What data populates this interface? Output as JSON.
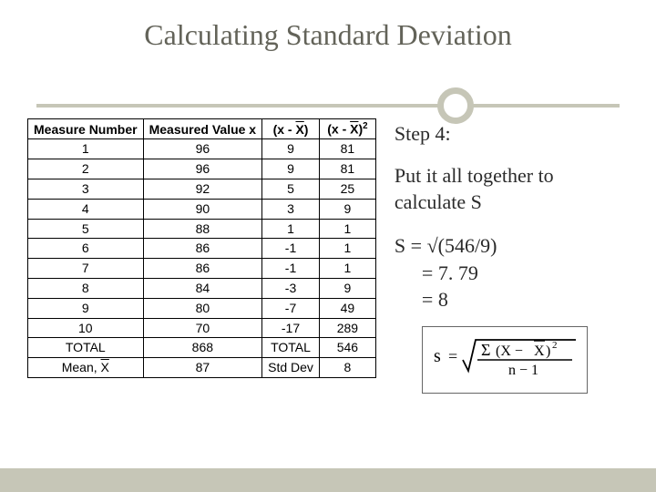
{
  "title": "Calculating Standard Deviation",
  "colors": {
    "accent": "#c6c6b7",
    "title_text": "#636359",
    "body_text": "#2a2a2a",
    "table_border": "#000000",
    "background": "#ffffff"
  },
  "table": {
    "headers": {
      "c1": "Measure Number",
      "c2": "Measured Value x",
      "c3_prefix": "(x - ",
      "c3_xbar": "X",
      "c3_suffix": ")",
      "c4_prefix": "(x - ",
      "c4_xbar": "X",
      "c4_suffix": ")",
      "c4_exp": "2"
    },
    "rows": [
      {
        "n": "1",
        "x": "96",
        "d": "9",
        "d2": "81"
      },
      {
        "n": "2",
        "x": "96",
        "d": "9",
        "d2": "81"
      },
      {
        "n": "3",
        "x": "92",
        "d": "5",
        "d2": "25"
      },
      {
        "n": "4",
        "x": "90",
        "d": "3",
        "d2": "9"
      },
      {
        "n": "5",
        "x": "88",
        "d": "1",
        "d2": "1"
      },
      {
        "n": "6",
        "x": "86",
        "d": "-1",
        "d2": "1"
      },
      {
        "n": "7",
        "x": "86",
        "d": "-1",
        "d2": "1"
      },
      {
        "n": "8",
        "x": "84",
        "d": "-3",
        "d2": "9"
      },
      {
        "n": "9",
        "x": "80",
        "d": "-7",
        "d2": "49"
      },
      {
        "n": "10",
        "x": "70",
        "d": "-17",
        "d2": "289"
      }
    ],
    "total_row": {
      "label": "TOTAL",
      "x": "868",
      "d": "TOTAL",
      "d2": "546"
    },
    "mean_row": {
      "label_prefix": "Mean, ",
      "label_x": "X",
      "x": "87",
      "d": "Std Dev",
      "d2": "8"
    }
  },
  "right": {
    "step": "Step 4:",
    "instruction": "Put it all together to calculate S",
    "line1": "S = √(546/9)",
    "line2": "= 7. 79",
    "line3": "= 8"
  },
  "formula": {
    "s": "s",
    "eq": "=",
    "sigma": "Σ",
    "num_open": "(X − ",
    "num_xbar": "X",
    "num_close": ")",
    "exp": "2",
    "den": "n − 1"
  }
}
